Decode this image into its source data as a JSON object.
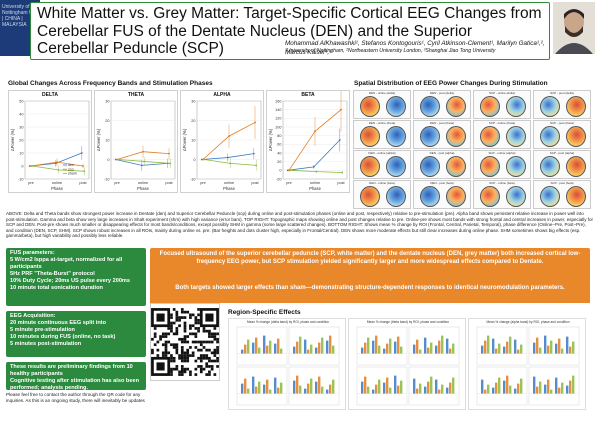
{
  "header": {
    "logo_text": "University of Nottingham UK | CHINA | MALAYSIA",
    "title": "White Matter vs. Grey Matter: Target-Specific Cortical EEG Changes from Cerebellar FUS of the Dentate Nucleus (DEN) and the Superior Cerebellar Peduncle (SCP)",
    "authors": "Mohammad AlKhawashki¹, Stefanos Kontogouris¹, Cyril Atkinson-Clement¹, Marilyn Gatica¹,², Marcus Kaiser¹,³",
    "affiliations": "¹University of Nottingham, ²Northeastern University London, ³Shanghai Jiao Tong University"
  },
  "global": {
    "title": "Global Changes Across Frequency Bands and Stimulation Phases",
    "x_axis_label": "Phase",
    "y_axis_label": "ΔPower (%)",
    "phases": [
      "pre",
      "online",
      "post"
    ],
    "legend": [
      "den",
      "scp",
      "sham"
    ],
    "colors": {
      "den": "#3a78c2",
      "scp": "#e07b20",
      "sham": "#8bb93a"
    }
  },
  "chart_data": [
    {
      "type": "line",
      "title": "DELTA",
      "categories": [
        "pre",
        "online",
        "post"
      ],
      "ylim": [
        -10,
        50
      ],
      "yticks": [
        -10,
        0,
        10,
        20,
        30,
        40,
        50
      ],
      "series": [
        {
          "name": "den",
          "values": [
            0,
            2,
            10
          ]
        },
        {
          "name": "scp",
          "values": [
            0,
            3,
            0
          ]
        },
        {
          "name": "sham",
          "values": [
            0,
            -3,
            -4
          ]
        }
      ]
    },
    {
      "type": "line",
      "title": "THETA",
      "categories": [
        "pre",
        "online",
        "post"
      ],
      "ylim": [
        -10,
        30
      ],
      "yticks": [
        -10,
        0,
        10,
        20,
        30
      ],
      "series": [
        {
          "name": "den",
          "values": [
            0,
            -3,
            -2
          ]
        },
        {
          "name": "scp",
          "values": [
            0,
            4,
            3
          ]
        },
        {
          "name": "sham",
          "values": [
            0,
            -1,
            -2
          ]
        }
      ]
    },
    {
      "type": "line",
      "title": "ALPHA",
      "categories": [
        "pre",
        "online",
        "post"
      ],
      "ylim": [
        -10,
        30
      ],
      "yticks": [
        -10,
        0,
        10,
        20,
        30
      ],
      "series": [
        {
          "name": "den",
          "values": [
            0,
            1,
            3
          ]
        },
        {
          "name": "scp",
          "values": [
            0,
            12,
            19
          ]
        },
        {
          "name": "sham",
          "values": [
            0,
            -2,
            -3
          ]
        }
      ]
    },
    {
      "type": "line",
      "title": "BETA",
      "categories": [
        "pre",
        "online",
        "post"
      ],
      "ylim": [
        -20,
        160
      ],
      "yticks": [
        -20,
        0,
        20,
        40,
        60,
        80,
        100,
        120,
        140,
        160
      ],
      "series": [
        {
          "name": "den",
          "values": [
            0,
            8,
            70
          ]
        },
        {
          "name": "scp",
          "values": [
            0,
            90,
            140
          ]
        },
        {
          "name": "sham",
          "values": [
            0,
            -3,
            -5
          ]
        }
      ]
    }
  ],
  "topo": {
    "title": "Spatial Distribution of EEG Power Changes During Stimulation",
    "panel_labels": [
      "DEN - online (delta)",
      "DEN - post (delta)",
      "SCP - online (delta)",
      "SCP - post (delta)",
      "DEN - online (theta)",
      "DEN - post (theta)",
      "SCP - online (theta)",
      "SCP - post (theta)",
      "DEN - online (alpha)",
      "DEN - post (alpha)",
      "SCP - online (alpha)",
      "SCP - post (alpha)",
      "DEN - online (beta)",
      "DEN - post (beta)",
      "SCP - online (beta)",
      "SCP - post (beta)"
    ]
  },
  "caption": "ABOVE: Delta and Theta bands show strongest power increase in Dentate (den) and Superior Cerebellar Peduncle (scp) during online and post-stimulation phases (online and post, respectively) relative to pre-stimulation (pre). Alpha band shows persistent relative increase in power well into post-stimulation. Gamma and beta show very large increases in Shalt experiment (shm) with high variance (error bars). TOP RIGHT: Topographic maps showing online and post changes relative to pre. Online-pre shows most bands with strong frontal and central increases in power, especially for SCP and DEN. Post-pre shows much smaller or disappearing effects for most bands/conditions, except possibly SHM in gamma (some large scattered changes). BOTTOM RIGHT: Shows mean % change by ROI (Frontal, Central, Parietal, Temporal), phase difference (Online−Pre, Post−Pre), and condition (DEN, SCP, SHM). SCP shows robust increases in all ROIs, mainly during online vs. pre. (Bar heights and dots cluster high, especially in Frontal/Central). DEN shows more moderate effects but still clear increases during online phase. SHM sometimes shows big effects (esp. gamma/beta), but high variability and possibly less reliable.",
  "fus_box": {
    "title": "FUS parameters:",
    "lines": [
      "5 W/cm2 Isppa at-target, normalized for all participants",
      "5Hz PRF \"Theta-Burst\" protocol",
      "10% Duty Cycle; 20ms US pulse every 200ms",
      "10 minute total sonication duration"
    ]
  },
  "eeg_box": {
    "title": "EEG Acquisition:",
    "lines": [
      "20 minute continuous EEG split into",
      "5 minute pre-stimulation",
      "10 minutes during FUS (online, no task)",
      "5 minutes post-stimulation"
    ]
  },
  "prelim_box": {
    "lines": [
      "These results are preliminary findings from 10 healthy participants",
      "Cognitive testing after stimulation has also been performed; analysis pending."
    ]
  },
  "highlight": {
    "line1": "Focused ultrasound of the superior cerebellar peduncle (SCP, white matter) and the dentate nucleus (DEN, grey matter) both increased cortical low-frequency EEG power, but SCP stimulation yielded significantly larger and more widespread effects compared to Dentate.",
    "line2": "Both targets showed larger effects than sham—demonstrating structure-dependent responses to identical neuromodulation parameters."
  },
  "region": {
    "title": "Region-Specific Effects",
    "panel_titles": [
      "Mean % change (delta band) by ROI, phase and condition",
      "Mean % change (theta band) by ROI, phase and condition",
      "Mean % change (alpha band) by ROI, phase and condition"
    ]
  },
  "footer": "Please feel free to contact the author through the QR code for any inquiries. As this is an ongoing study, there will inevitably be updates"
}
